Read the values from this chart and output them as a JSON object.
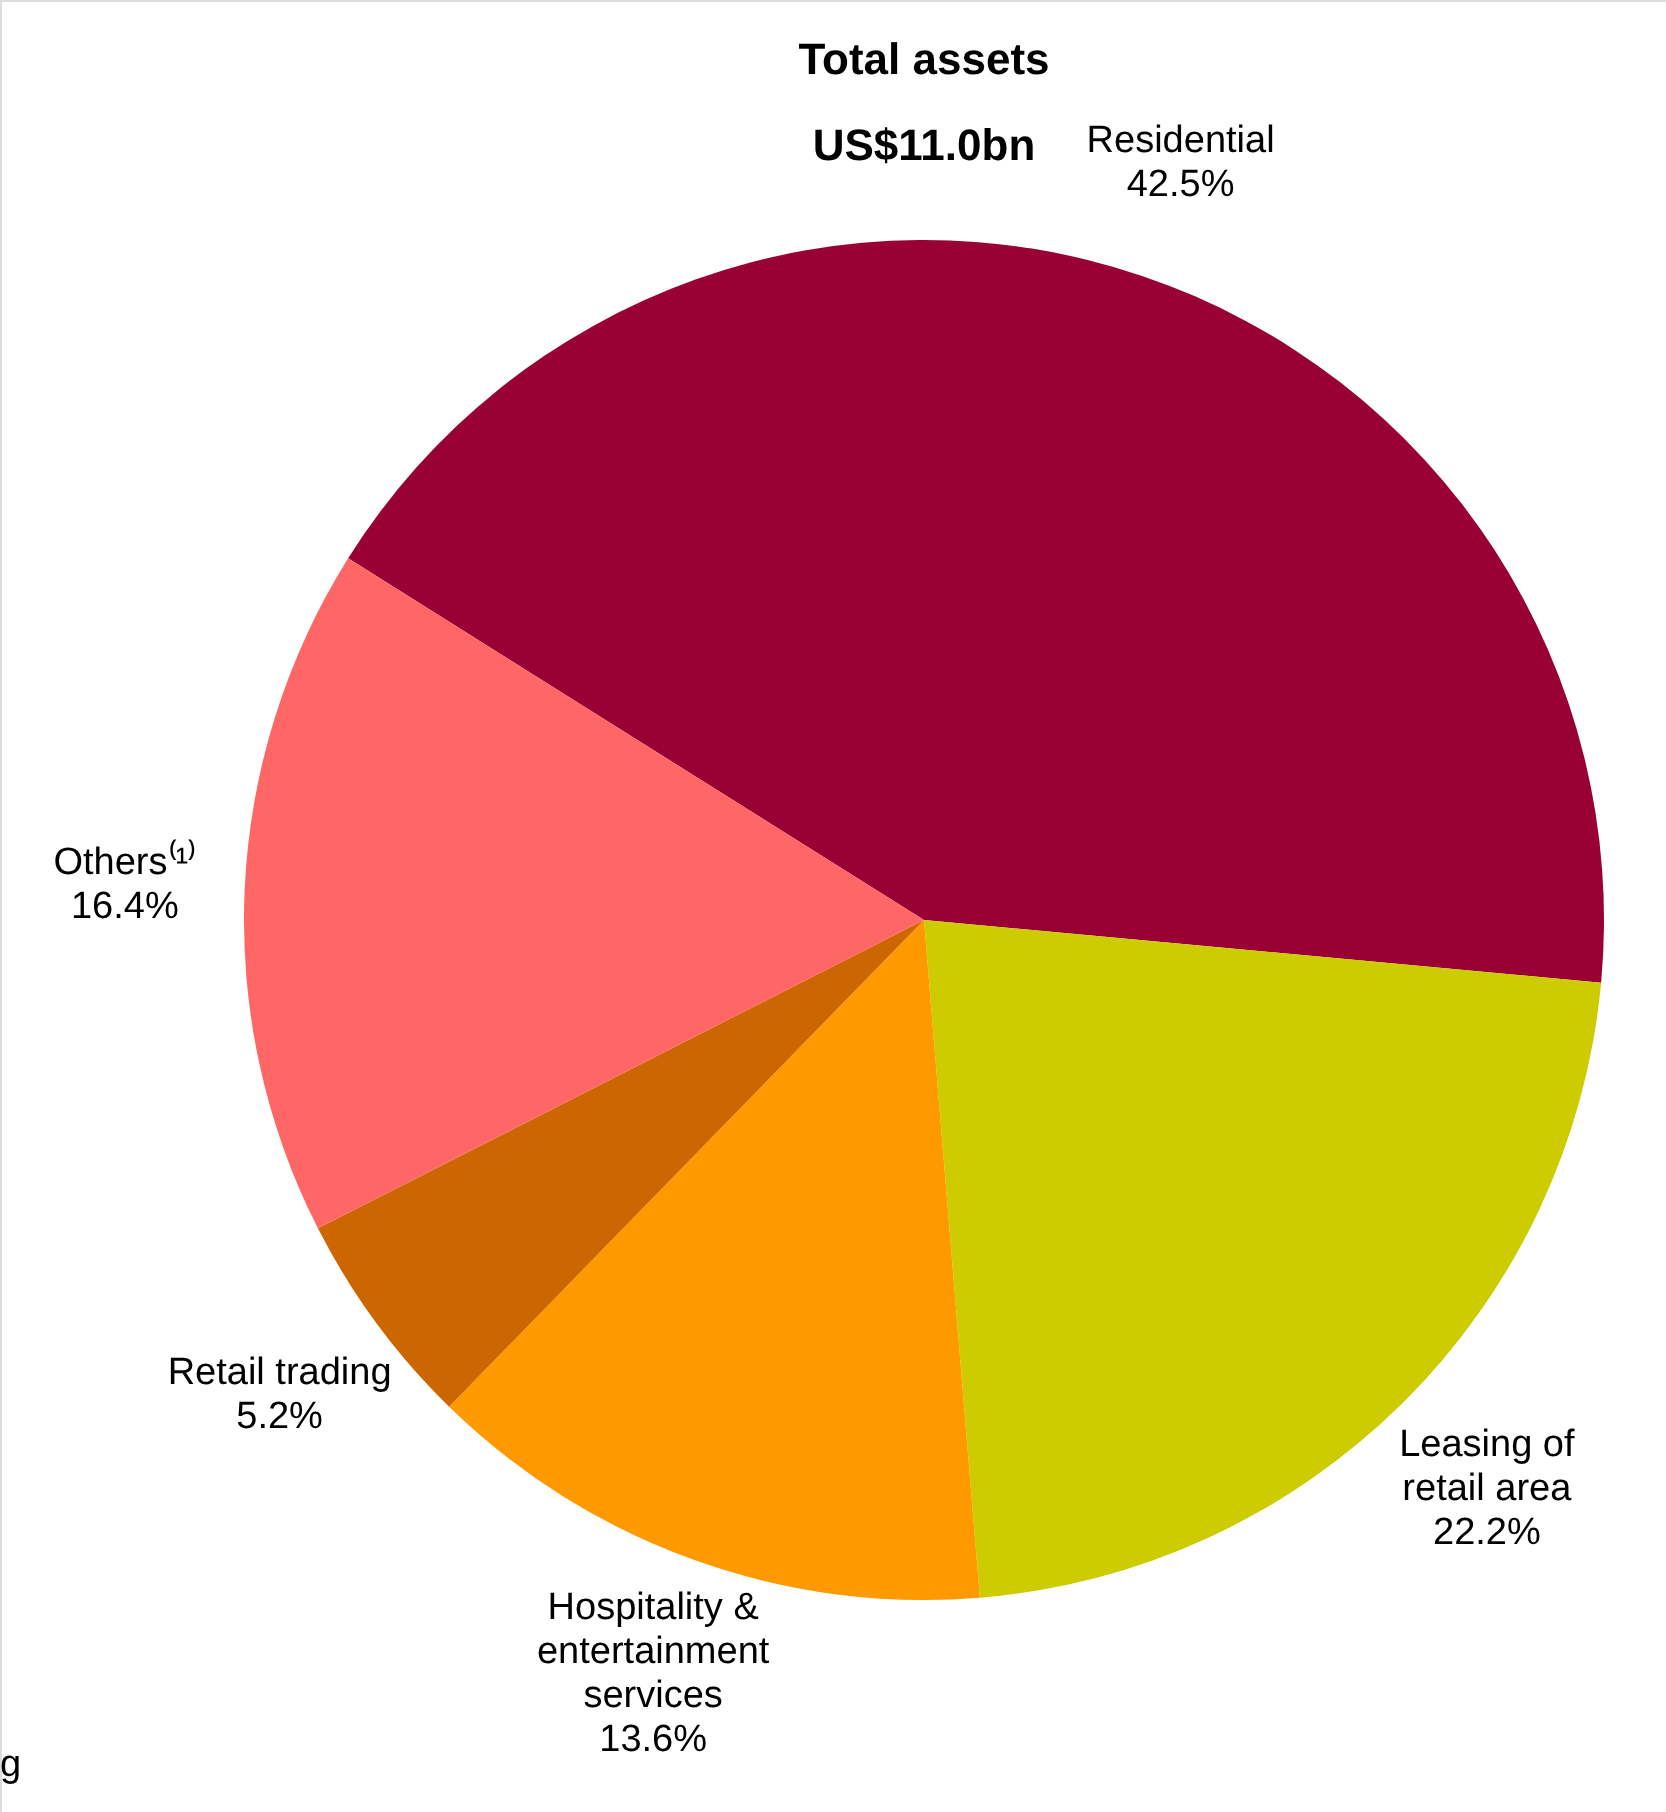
{
  "chart_data": {
    "type": "pie",
    "title": "Total assets",
    "subtitle": "US$11.0bn",
    "categories": [
      "Residential",
      "Leasing of\nretail area",
      "Hospitality &\nentertainment\nservices",
      "Retail trading",
      "Others⁽¹⁾"
    ],
    "values": [
      42.5,
      22.2,
      13.6,
      5.2,
      16.4
    ],
    "colors": [
      "#990033",
      "#cccc00",
      "#ff9900",
      "#cc6600",
      "#ff6666"
    ],
    "value_labels": [
      "42.5%",
      "22.2%",
      "13.6%",
      "5.2%",
      "16.4%"
    ],
    "legend": false,
    "annotations": [
      "g"
    ]
  }
}
